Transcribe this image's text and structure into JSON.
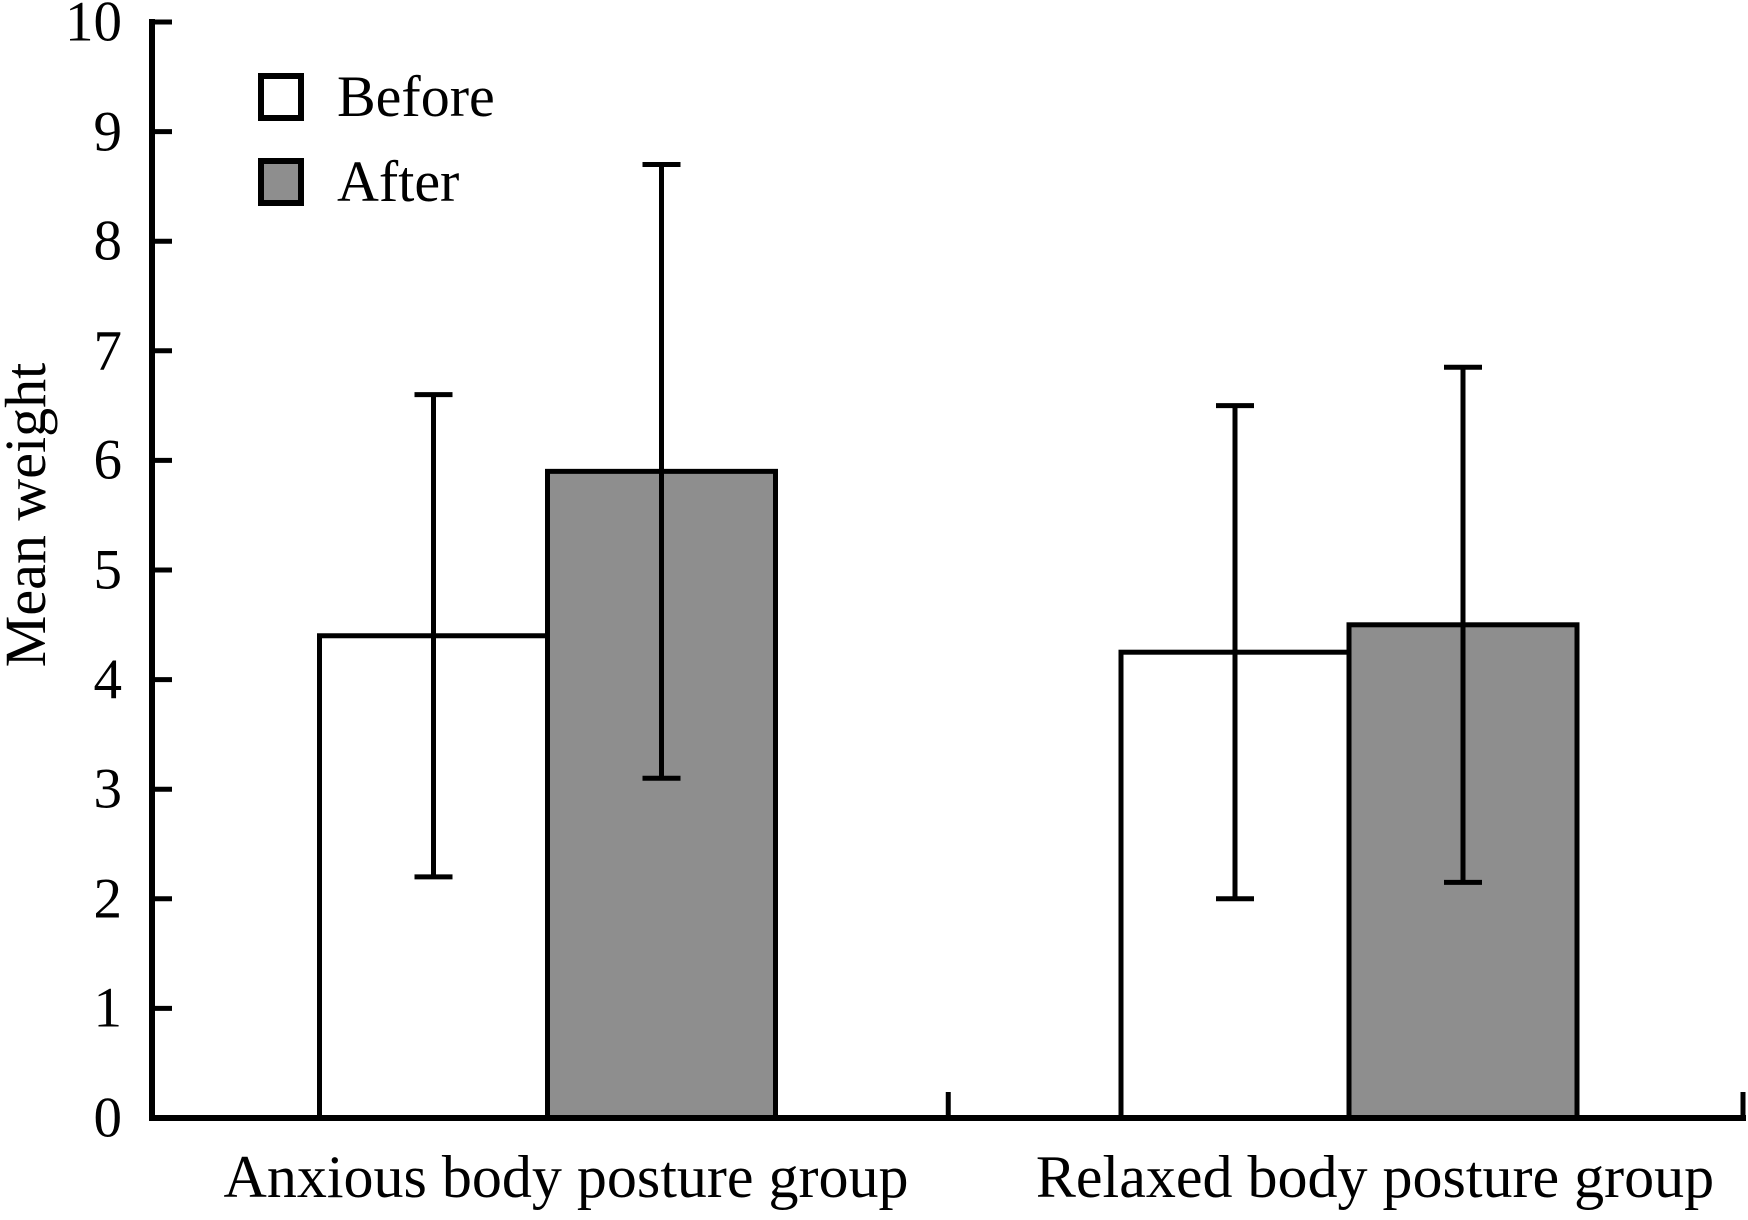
{
  "chart_data": {
    "type": "bar",
    "title": "",
    "xlabel": "",
    "ylabel": "Mean weight",
    "ylim": [
      0,
      10
    ],
    "yticks": [
      0,
      1,
      2,
      3,
      4,
      5,
      6,
      7,
      8,
      9,
      10
    ],
    "grid": false,
    "legend_position": "top-left",
    "error_bars": "symmetric, drawn over bars with horizontal caps",
    "categories": [
      "Anxious body posture group",
      "Relaxed body posture group"
    ],
    "series": [
      {
        "name": "Before",
        "fill": "#ffffff",
        "values": [
          4.4,
          4.25
        ],
        "errors": [
          2.2,
          2.25
        ],
        "error_low": [
          2.2,
          2.0
        ],
        "error_high": [
          6.6,
          6.5
        ]
      },
      {
        "name": "After",
        "fill": "#8e8e8e",
        "values": [
          5.9,
          4.5
        ],
        "errors": [
          2.8,
          2.35
        ],
        "error_low": [
          3.1,
          2.15
        ],
        "error_high": [
          8.7,
          6.85
        ]
      }
    ],
    "colors": {
      "background": "#ffffff",
      "axis": "#000000",
      "text": "#000000",
      "bar_outline": "#000000",
      "before_fill": "#ffffff",
      "after_fill": "#8e8e8e"
    }
  }
}
